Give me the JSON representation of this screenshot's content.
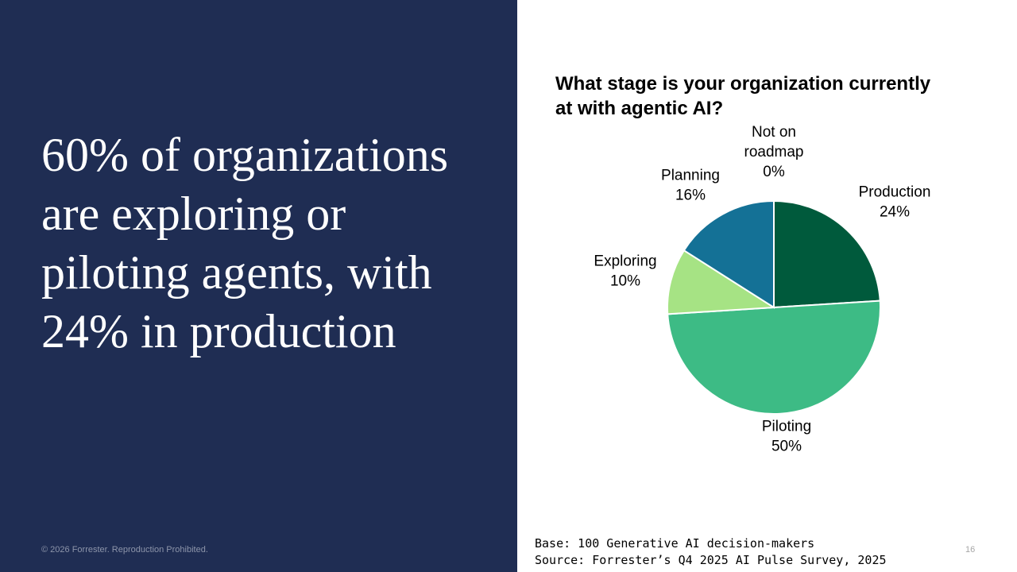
{
  "slide": {
    "headline": "60% of organizations are exploring or piloting agents, with 24% in production",
    "copyright": "© 2026 Forrester. Reproduction Prohibited.",
    "page_number": "16"
  },
  "footnote": {
    "base": "Base: 100 Generative AI decision-makers",
    "source": "Source: Forrester’s Q4 2025 AI Pulse Survey, 2025"
  },
  "chart_data": {
    "type": "pie",
    "title": "What stage is your organization currently at with agentic AI?",
    "categories": [
      "Production",
      "Piloting",
      "Exploring",
      "Planning",
      "Not on roadmap"
    ],
    "label_lines": [
      [
        "Production",
        "24%"
      ],
      [
        "Piloting",
        "50%"
      ],
      [
        "Exploring",
        "10%"
      ],
      [
        "Planning",
        "16%"
      ],
      [
        "Not on",
        "roadmap",
        "0%"
      ]
    ],
    "values": [
      24,
      50,
      10,
      16,
      0
    ],
    "unit": "%",
    "colors": [
      "#005a3c",
      "#3dbb85",
      "#a6e384",
      "#147196",
      "#d9d9d9"
    ],
    "start": "12 o'clock, clockwise"
  }
}
